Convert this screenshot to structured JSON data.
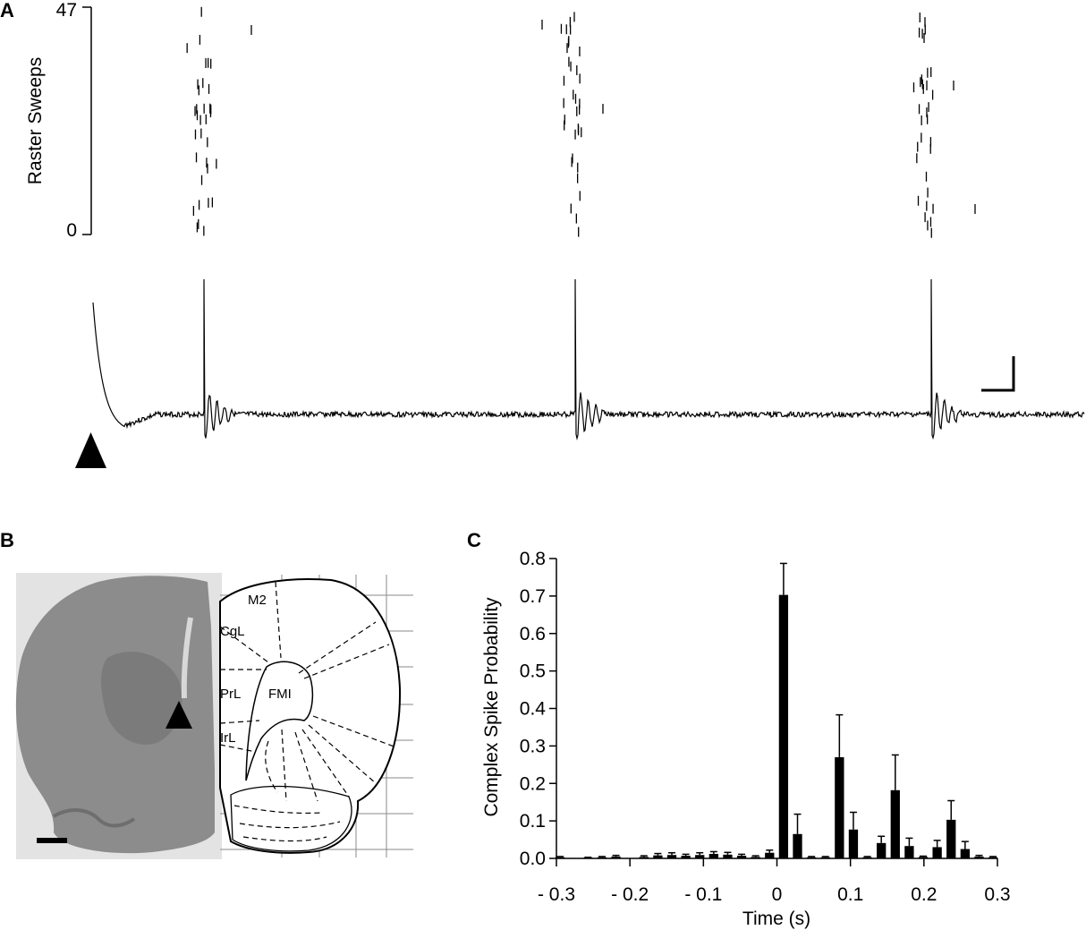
{
  "panels": {
    "a": {
      "letter": "A",
      "raster": {
        "ylabel": "Raster Sweeps",
        "ytick_top": "47",
        "ytick_bottom": "0"
      }
    },
    "b": {
      "letter": "B",
      "atlas_regions": [
        "M2",
        "CgL",
        "PrL",
        "FMI",
        "IrL"
      ]
    },
    "c": {
      "letter": "C"
    }
  },
  "colors": {
    "ink": "#000000",
    "slice_tissue": "#8c8c8c",
    "atlas_grid": "#8a8a8a"
  },
  "chart_data": {
    "type": "bar",
    "xlabel": "Time (s)",
    "ylabel": "Complex  Spike Probability",
    "xlim": [
      -0.3,
      0.3
    ],
    "ylim": [
      0,
      0.8
    ],
    "xtick_labels": [
      "- 0.3",
      "- 0.2",
      "- 0.1",
      "0",
      "0.1",
      "0.2",
      "0.3"
    ],
    "ytick_labels": [
      "0.0",
      "0.1",
      "0.2",
      "0.3",
      "0.4",
      "0.5",
      "0.6",
      "0.7",
      "0.8"
    ],
    "bin_width": 0.019,
    "x": [
      -0.295,
      -0.257,
      -0.238,
      -0.219,
      -0.181,
      -0.162,
      -0.143,
      -0.124,
      -0.105,
      -0.086,
      -0.067,
      -0.048,
      -0.029,
      -0.01,
      0.009,
      0.028,
      0.047,
      0.066,
      0.085,
      0.104,
      0.123,
      0.142,
      0.161,
      0.18,
      0.199,
      0.218,
      0.237,
      0.256,
      0.275,
      0.294
    ],
    "values": [
      0.003,
      0.002,
      0.003,
      0.005,
      0.004,
      0.008,
      0.009,
      0.007,
      0.009,
      0.012,
      0.01,
      0.007,
      0.004,
      0.015,
      0.703,
      0.065,
      0.003,
      0.003,
      0.27,
      0.077,
      0.003,
      0.041,
      0.182,
      0.033,
      0.004,
      0.03,
      0.103,
      0.025,
      0.005,
      0.003
    ],
    "errors": [
      0.002,
      0.001,
      0.002,
      0.003,
      0.003,
      0.005,
      0.006,
      0.004,
      0.006,
      0.006,
      0.006,
      0.004,
      0.003,
      0.007,
      0.084,
      0.053,
      0.002,
      0.002,
      0.113,
      0.046,
      0.002,
      0.018,
      0.094,
      0.021,
      0.002,
      0.018,
      0.051,
      0.02,
      0.003,
      0.002
    ]
  }
}
